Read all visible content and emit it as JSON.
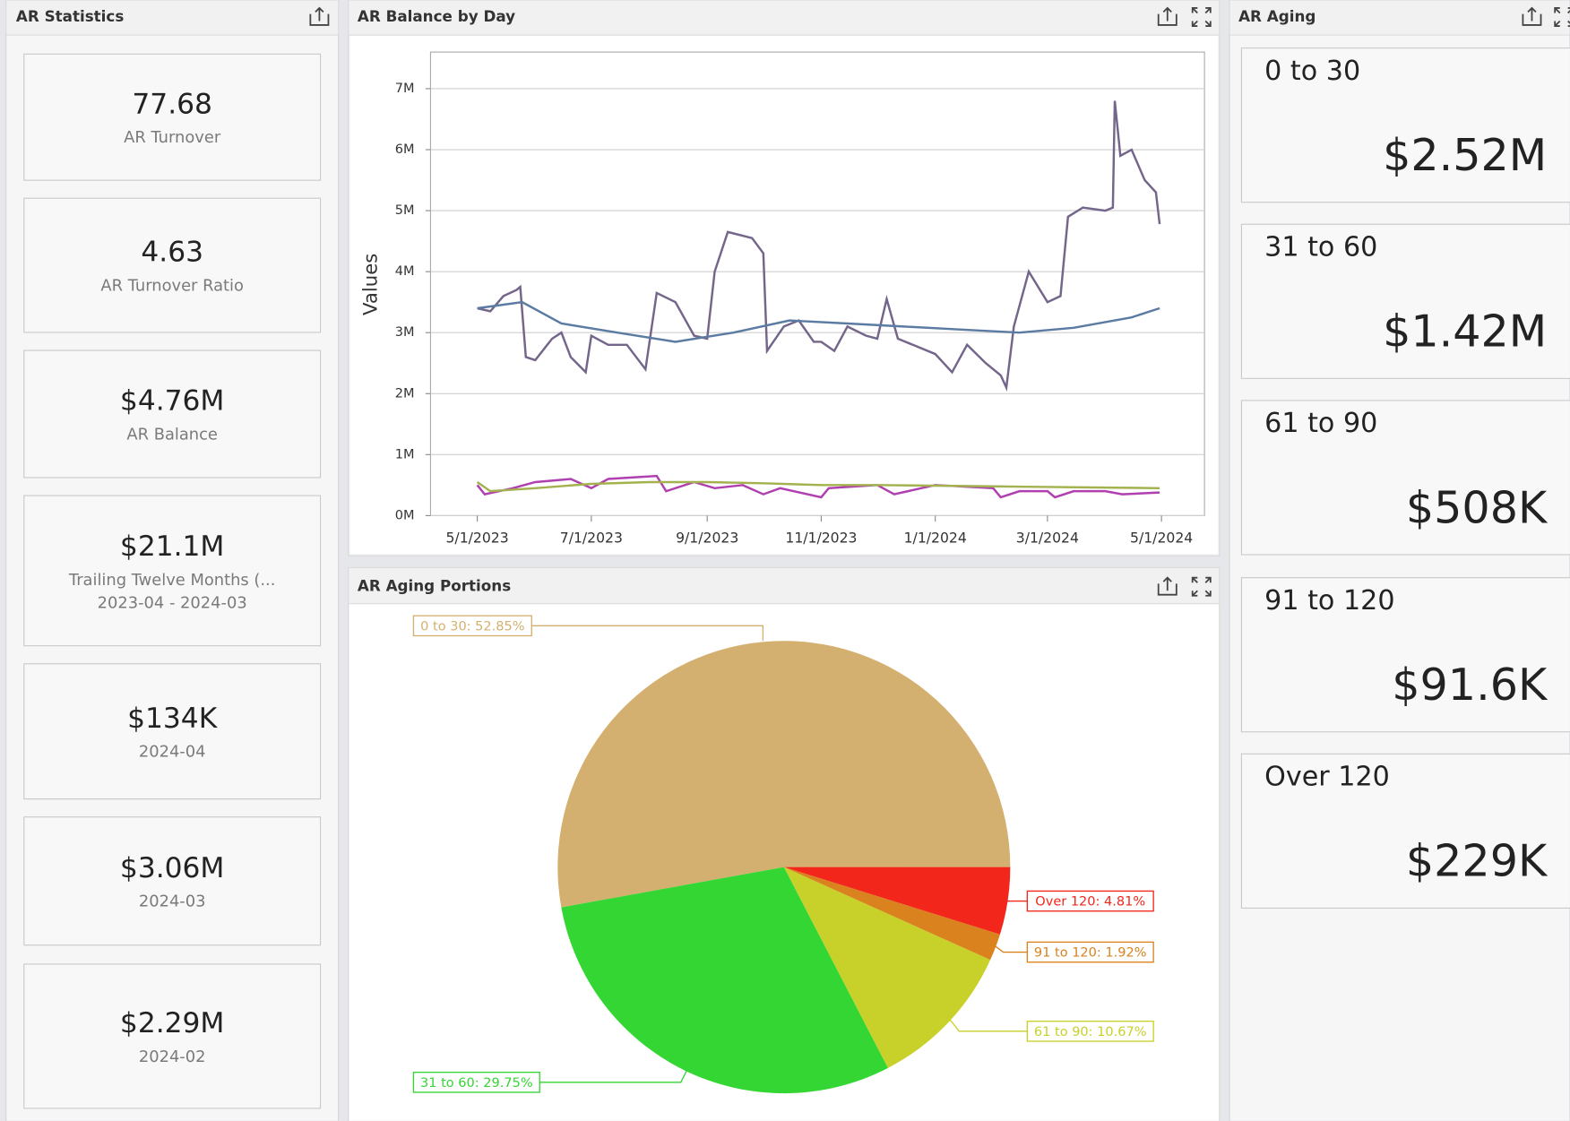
{
  "panels": {
    "stats": "AR Statistics",
    "balance": "AR Balance by Day",
    "portions": "AR Aging Portions",
    "aging": "AR Aging"
  },
  "stats": [
    {
      "value": "77.68",
      "labels": [
        "AR Turnover"
      ]
    },
    {
      "value": "4.63",
      "labels": [
        "AR Turnover Ratio"
      ]
    },
    {
      "value": "$4.76M",
      "labels": [
        "AR Balance"
      ]
    },
    {
      "value": "$21.1M",
      "labels": [
        "Trailing Twelve Months (...",
        "2023-04 - 2024-03"
      ]
    },
    {
      "value": "$134K",
      "labels": [
        "2024-04"
      ]
    },
    {
      "value": "$3.06M",
      "labels": [
        "2024-03"
      ]
    },
    {
      "value": "$2.29M",
      "labels": [
        "2024-02"
      ]
    }
  ],
  "aging": [
    {
      "title": "0 to 30",
      "value": "$2.52M"
    },
    {
      "title": "31 to 60",
      "value": "$1.42M"
    },
    {
      "title": "61 to 90",
      "value": "$508K"
    },
    {
      "title": "91 to 120",
      "value": "$91.6K"
    },
    {
      "title": "Over 120",
      "value": "$229K"
    }
  ],
  "chart_data": [
    {
      "type": "line",
      "y_label": "Values",
      "xlim": [
        "4/6/2023",
        "5/24/2024"
      ],
      "xticks": [
        "5/1/2023",
        "7/1/2023",
        "9/1/2023",
        "11/1/2023",
        "1/1/2024",
        "3/1/2024",
        "5/1/2024"
      ],
      "ylim": [
        0,
        7.6
      ],
      "yticks": [
        {
          "value": 0,
          "label": "0M"
        },
        {
          "value": 1,
          "label": "1M"
        },
        {
          "value": 2,
          "label": "2M"
        },
        {
          "value": 3,
          "label": "3M"
        },
        {
          "value": 4,
          "label": "4M"
        },
        {
          "value": 5,
          "label": "5M"
        },
        {
          "value": 6,
          "label": "6M"
        },
        {
          "value": 7,
          "label": "7M"
        }
      ],
      "grid": true,
      "series": [
        {
          "color": "#74668a",
          "x": [
            "5/1/2023",
            "5/8/2023",
            "5/15/2023",
            "5/22/2023",
            "5/24/2023",
            "5/27/2023",
            "6/1/2023",
            "6/10/2023",
            "6/15/2023",
            "6/20/2023",
            "6/28/2023",
            "7/1/2023",
            "7/10/2023",
            "7/20/2023",
            "7/30/2023",
            "8/5/2023",
            "8/15/2023",
            "8/25/2023",
            "9/1/2023",
            "9/5/2023",
            "9/12/2023",
            "9/25/2023",
            "10/1/2023",
            "10/3/2023",
            "10/12/2023",
            "10/20/2023",
            "10/28/2023",
            "11/1/2023",
            "11/8/2023",
            "11/15/2023",
            "11/25/2023",
            "12/1/2023",
            "12/6/2023",
            "12/12/2023",
            "12/20/2023",
            "1/1/2024",
            "1/10/2024",
            "1/18/2024",
            "1/28/2024",
            "2/5/2024",
            "2/8/2024",
            "2/12/2024",
            "2/20/2024",
            "3/1/2024",
            "3/8/2024",
            "3/12/2024",
            "3/20/2024",
            "4/1/2024",
            "4/5/2024",
            "4/6/2024",
            "4/9/2024",
            "4/15/2024",
            "4/22/2024",
            "4/28/2024",
            "4/30/2024"
          ],
          "values": [
            3.4,
            3.35,
            3.6,
            3.7,
            3.75,
            2.6,
            2.55,
            2.9,
            3.0,
            2.6,
            2.35,
            2.95,
            2.8,
            2.8,
            2.4,
            3.65,
            3.5,
            2.95,
            2.9,
            4.0,
            4.65,
            4.55,
            4.3,
            2.7,
            3.1,
            3.2,
            2.85,
            2.85,
            2.7,
            3.1,
            2.95,
            2.9,
            3.55,
            2.9,
            2.8,
            2.65,
            2.35,
            2.8,
            2.5,
            2.3,
            2.1,
            3.1,
            4.0,
            3.5,
            3.6,
            4.9,
            5.05,
            5.0,
            5.05,
            6.8,
            5.9,
            6.0,
            5.5,
            5.3,
            4.78
          ]
        },
        {
          "color": "#5b7ba3",
          "x": [
            "5/1/2023",
            "5/25/2023",
            "6/15/2023",
            "7/15/2023",
            "8/15/2023",
            "9/15/2023",
            "10/15/2023",
            "11/15/2023",
            "12/15/2023",
            "1/15/2024",
            "2/15/2024",
            "3/15/2024",
            "4/15/2024",
            "4/30/2024"
          ],
          "values": [
            3.4,
            3.5,
            3.15,
            3.0,
            2.85,
            3.0,
            3.2,
            3.15,
            3.1,
            3.05,
            3.0,
            3.08,
            3.25,
            3.4
          ]
        },
        {
          "color": "#b040b0",
          "x": [
            "5/1/2023",
            "5/5/2023",
            "5/20/2023",
            "6/1/2023",
            "6/20/2023",
            "7/1/2023",
            "7/10/2023",
            "8/5/2023",
            "8/10/2023",
            "8/25/2023",
            "9/5/2023",
            "9/20/2023",
            "10/1/2023",
            "10/10/2023",
            "11/1/2023",
            "11/5/2023",
            "12/1/2023",
            "12/10/2023",
            "1/1/2024",
            "2/1/2024",
            "2/5/2024",
            "2/15/2024",
            "3/1/2024",
            "3/5/2024",
            "3/15/2024",
            "4/1/2024",
            "4/10/2024",
            "4/30/2024"
          ],
          "values": [
            0.5,
            0.35,
            0.45,
            0.55,
            0.6,
            0.45,
            0.6,
            0.65,
            0.4,
            0.55,
            0.45,
            0.5,
            0.35,
            0.45,
            0.3,
            0.45,
            0.5,
            0.35,
            0.5,
            0.45,
            0.3,
            0.4,
            0.4,
            0.3,
            0.4,
            0.4,
            0.35,
            0.38
          ]
        },
        {
          "color": "#a3b24e",
          "x": [
            "5/1/2023",
            "5/8/2023",
            "6/1/2023",
            "7/1/2023",
            "8/1/2023",
            "9/1/2023",
            "10/1/2023",
            "11/1/2023",
            "12/1/2023",
            "1/1/2024",
            "2/1/2024",
            "3/1/2024",
            "4/1/2024",
            "4/30/2024"
          ],
          "values": [
            0.55,
            0.4,
            0.45,
            0.52,
            0.55,
            0.55,
            0.53,
            0.5,
            0.5,
            0.49,
            0.48,
            0.47,
            0.46,
            0.45
          ]
        }
      ]
    },
    {
      "type": "pie",
      "categories": [
        "0 to 30",
        "31 to 60",
        "61 to 90",
        "91 to 120",
        "Over 120"
      ],
      "values": [
        52.85,
        29.75,
        10.67,
        1.92,
        4.81
      ],
      "value_labels": [
        "0 to 30: 52.85%",
        "31 to 60: 29.75%",
        "61 to 90: 10.67%",
        "91 to 120: 1.92%",
        "Over 120: 4.81%"
      ],
      "colors": [
        "#d4b070",
        "#33d633",
        "#c8d02a",
        "#d9821e",
        "#f2261a"
      ]
    }
  ]
}
